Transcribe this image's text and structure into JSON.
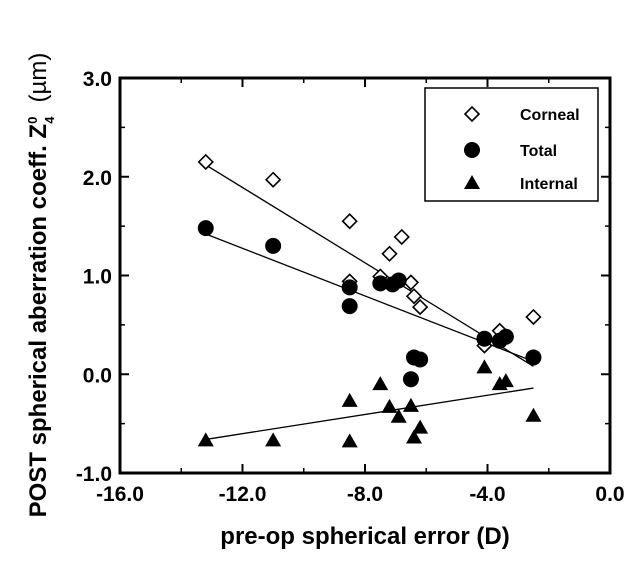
{
  "chart_data": {
    "type": "scatter",
    "xlabel": "pre-op spherical error (D)",
    "ylabel_prefix": "POST spherical aberration coeff. ",
    "ylabel_symbol": "Z",
    "ylabel_sub": "4",
    "ylabel_sup": "0",
    "ylabel_unit": "(µm)",
    "xlim": [
      -16.0,
      0.0
    ],
    "ylim": [
      -1.0,
      3.0
    ],
    "xticks": [
      -16.0,
      -12.0,
      -8.0,
      -4.0,
      0.0
    ],
    "yticks": [
      -1.0,
      0.0,
      1.0,
      2.0,
      3.0
    ],
    "xtick_labels": [
      "-16.0",
      "-12.0",
      "-8.0",
      "-4.0",
      "0.0"
    ],
    "ytick_labels": [
      "-1.0",
      "0.0",
      "1.0",
      "2.0",
      "3.0"
    ],
    "grid": false,
    "legend_position": "top-right",
    "series": [
      {
        "name": "Corneal",
        "marker": "diamond-open",
        "x": [
          -13.2,
          -11.0,
          -8.5,
          -8.5,
          -7.5,
          -7.2,
          -6.8,
          -6.5,
          -6.4,
          -6.2,
          -4.1,
          -3.6,
          -3.4,
          -2.5
        ],
        "y": [
          2.15,
          1.97,
          1.55,
          0.94,
          0.99,
          1.22,
          1.39,
          0.93,
          0.79,
          0.68,
          0.29,
          0.44,
          0.38,
          0.58
        ],
        "fit": {
          "x": [
            -13.2,
            -2.5
          ],
          "y": [
            2.12,
            0.08
          ]
        }
      },
      {
        "name": "Total",
        "marker": "circle-filled",
        "x": [
          -13.2,
          -11.0,
          -8.5,
          -8.5,
          -7.5,
          -7.1,
          -6.9,
          -6.5,
          -6.4,
          -6.2,
          -4.1,
          -3.6,
          -3.4,
          -2.5
        ],
        "y": [
          1.48,
          1.3,
          0.88,
          0.69,
          0.92,
          0.91,
          0.95,
          -0.05,
          0.17,
          0.15,
          0.36,
          0.34,
          0.38,
          0.17
        ],
        "fit": {
          "x": [
            -13.2,
            -2.5
          ],
          "y": [
            1.42,
            0.13
          ]
        }
      },
      {
        "name": "Internal",
        "marker": "triangle-filled",
        "x": [
          -13.2,
          -11.0,
          -8.5,
          -8.5,
          -7.5,
          -7.2,
          -6.9,
          -6.5,
          -6.4,
          -6.2,
          -4.1,
          -3.6,
          -3.4,
          -2.5
        ],
        "y": [
          -0.67,
          -0.67,
          -0.27,
          -0.68,
          -0.1,
          -0.33,
          -0.43,
          -0.32,
          -0.64,
          -0.54,
          0.07,
          -0.1,
          -0.07,
          -0.42
        ],
        "fit": {
          "x": [
            -13.2,
            -2.5
          ],
          "y": [
            -0.66,
            -0.14
          ]
        }
      }
    ]
  }
}
